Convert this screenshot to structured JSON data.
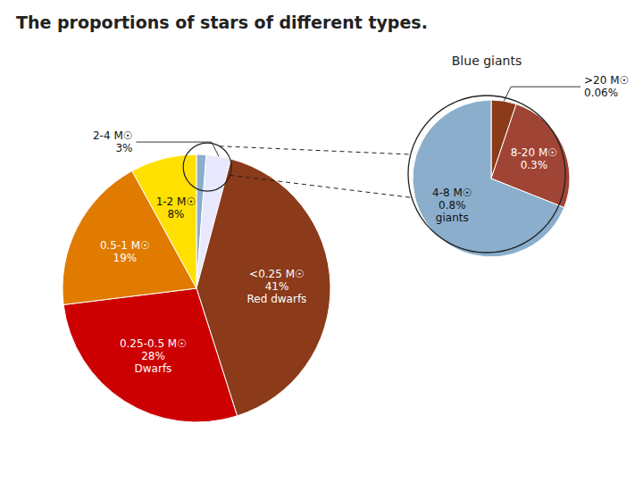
{
  "chart_data": [
    {
      "type": "pie",
      "title": "The proportions of stars of different types.",
      "categories": [
        null,
        "2-4 M☉",
        "<0.25 M☉",
        "0.25-0.5 M☉",
        "0.5-1 M☉",
        "1-2 M☉"
      ],
      "values": [
        1.16,
        3.0,
        41.0,
        28.0,
        19.0,
        8.0
      ],
      "value_labels": [
        null,
        "3%",
        "41%",
        "28%",
        "19%",
        "8%"
      ],
      "annotations": [
        null,
        null,
        "Red dwarfs",
        "Dwarfs",
        null,
        null
      ],
      "colors": [
        "#8AAECC",
        "#E8E8FF",
        "#8B3A1A",
        "#CC0000",
        "#E07B00",
        "#FFE000"
      ],
      "data_labels": true
    },
    {
      "type": "pie",
      "title": "Blue giants",
      "categories": [
        ">20 M☉",
        "8-20 M☉",
        "4-8 M☉"
      ],
      "values": [
        0.06,
        0.3,
        0.8
      ],
      "value_labels": [
        "0.06%",
        "0.3%",
        "0.8%"
      ],
      "annotations": [
        null,
        null,
        "giants"
      ],
      "colors": [
        "#8B3A1A",
        "#A04535",
        "#8AAECC"
      ],
      "data_labels": true
    }
  ]
}
